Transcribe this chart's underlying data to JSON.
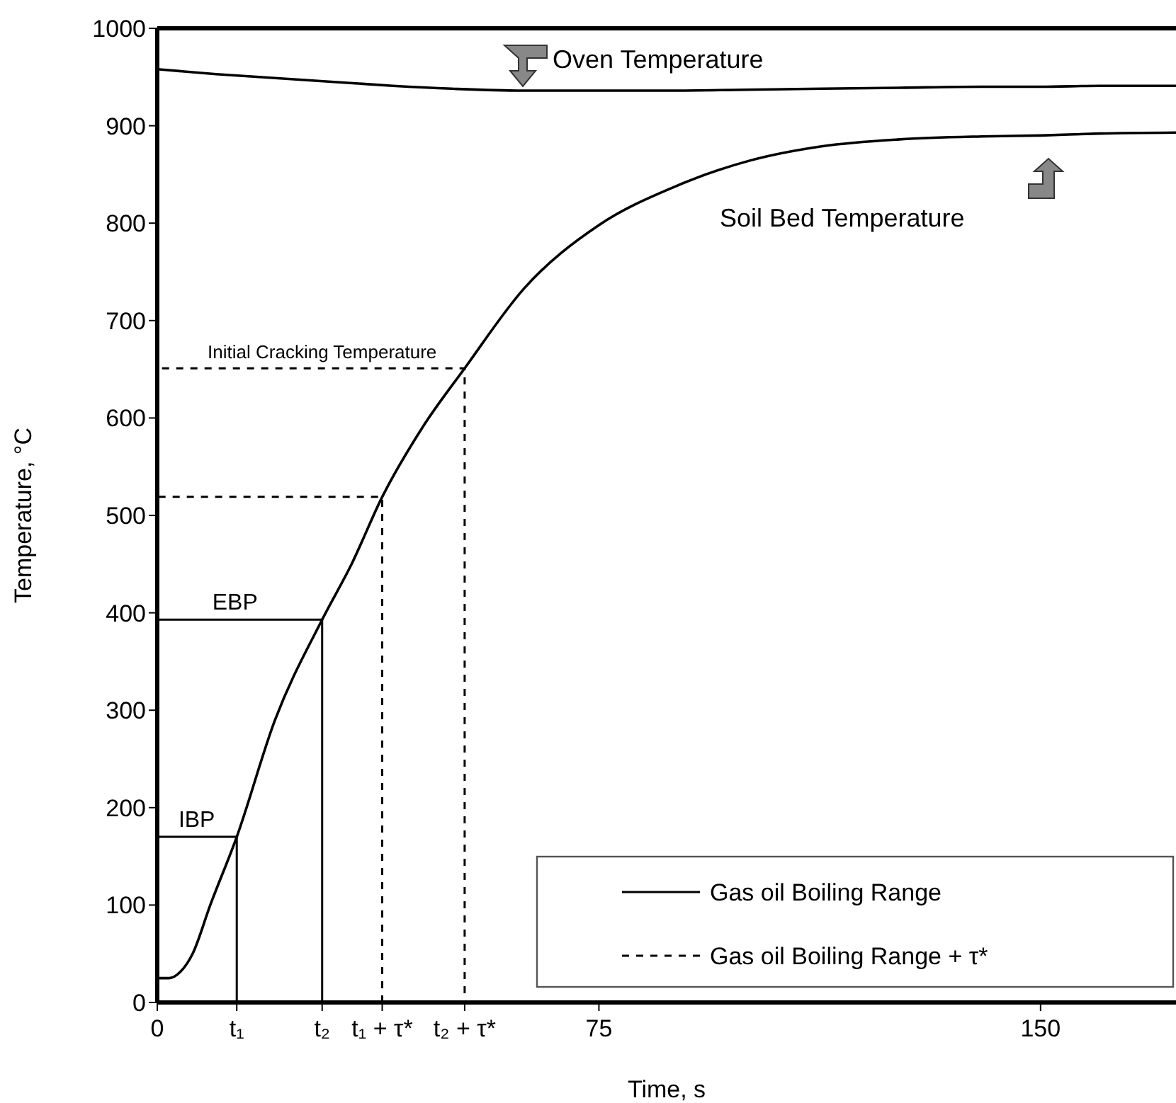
{
  "chart_data": {
    "type": "line",
    "xlabel": "Time, s",
    "ylabel": "Temperature, °C",
    "xlim": [
      0,
      173
    ],
    "ylim": [
      0,
      1000
    ],
    "xticks": [
      0,
      {
        "value": 13.5,
        "label": "t₁"
      },
      {
        "value": 28,
        "label": "t₂"
      },
      {
        "value": 38.2,
        "label": "t₁ + τ*"
      },
      {
        "value": 52.2,
        "label": "t₂ + τ*"
      },
      75,
      150
    ],
    "yticks": [
      0,
      100,
      200,
      300,
      400,
      500,
      600,
      700,
      800,
      900,
      1000
    ],
    "marker": "none",
    "legend": "bottom right",
    "annotations": [
      {
        "text": "IBP",
        "x": 6.7,
        "y": 170
      },
      {
        "text": "EBP",
        "x": 13.2,
        "y": 393
      },
      {
        "text": "Initial  Cracking Temperature",
        "x": 28,
        "y": 651
      }
    ],
    "series": [
      {
        "name": "Oven Temperature",
        "color": "#000000",
        "x": [
          0,
          10,
          20,
          30,
          40,
          50,
          62,
          75,
          87,
          100,
          113,
          126,
          140,
          150,
          160,
          173
        ],
        "values": [
          958,
          953,
          949,
          945,
          941,
          938,
          936,
          936,
          936,
          937,
          938,
          939,
          940,
          940,
          941,
          941
        ]
      },
      {
        "name": "Soil Bed Temperature",
        "color": "#000000",
        "x": [
          0,
          2,
          4,
          6,
          9,
          13.5,
          20,
          28,
          33,
          38.2,
          45,
          52.2,
          62.3,
          75,
          87.7,
          100.5,
          113,
          126,
          140,
          150,
          160,
          173
        ],
        "values": [
          25,
          25,
          32,
          50,
          100,
          170,
          290,
          393,
          450,
          519,
          590,
          651,
          733,
          798,
          837,
          864,
          879,
          886,
          889,
          890,
          892,
          893
        ]
      },
      {
        "name": "Gas oil Boiling Range",
        "color": "#000000",
        "line_style": "solid",
        "x": [
          13.5,
          13.5,
          0,
          0,
          28,
          28
        ],
        "values": [
          0,
          170,
          170,
          393,
          393,
          0
        ]
      },
      {
        "name": "Gas oil Boiling Range + τ*",
        "color": "#000000",
        "line_style": "dashed",
        "x": [
          38.2,
          38.2,
          0,
          0,
          52.2,
          52.2
        ],
        "values": [
          0,
          519,
          519,
          651,
          651,
          0
        ]
      }
    ]
  }
}
